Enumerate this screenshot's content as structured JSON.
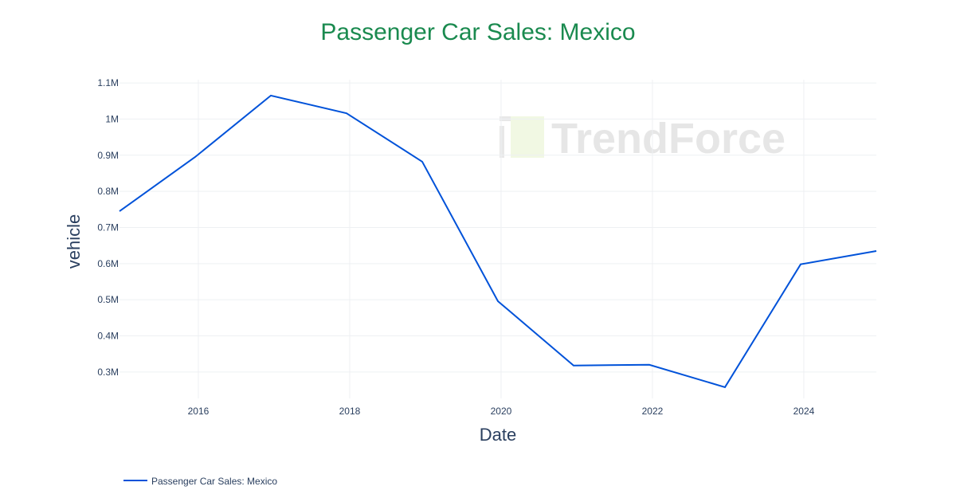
{
  "chart_data": {
    "type": "line",
    "title": "Passenger Car Sales: Mexico",
    "xlabel": "Date",
    "ylabel": "vehicle",
    "x": [
      "2014-12",
      "2015-12",
      "2016-12",
      "2017-12",
      "2018-12",
      "2019-12",
      "2020-12",
      "2021-12",
      "2022-12",
      "2023-12",
      "2024-12"
    ],
    "series": [
      {
        "name": "Passenger Car Sales: Mexico",
        "values": [
          745000,
          895000,
          1065000,
          1016000,
          882000,
          496000,
          318000,
          320000,
          258000,
          598000,
          635000
        ],
        "color": "#0052d9"
      }
    ],
    "x_ticks": [
      "2016",
      "2018",
      "2020",
      "2022",
      "2024"
    ],
    "y_ticks": [
      {
        "value": 300000,
        "label": "0.3M"
      },
      {
        "value": 400000,
        "label": "0.4M"
      },
      {
        "value": 500000,
        "label": "0.5M"
      },
      {
        "value": 600000,
        "label": "0.6M"
      },
      {
        "value": 700000,
        "label": "0.7M"
      },
      {
        "value": 800000,
        "label": "0.8M"
      },
      {
        "value": 900000,
        "label": "0.9M"
      },
      {
        "value": 1000000,
        "label": "1M"
      },
      {
        "value": 1100000,
        "label": "1.1M"
      }
    ],
    "xlim": [
      "2014-12",
      "2024-12"
    ],
    "ylim": [
      227000,
      1120000
    ],
    "grid": true,
    "legend": "bottom-left",
    "title_color": "#1a8a4f",
    "watermark": "TrendForce"
  }
}
